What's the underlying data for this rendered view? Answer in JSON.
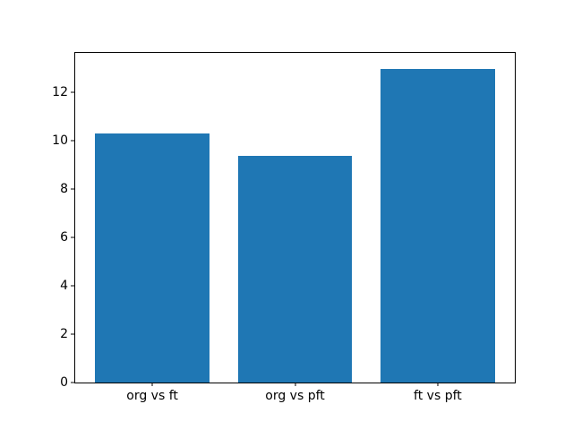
{
  "chart_data": {
    "type": "bar",
    "categories": [
      "org vs ft",
      "org vs pft",
      "ft vs pft"
    ],
    "values": [
      10.3,
      9.4,
      13.0
    ],
    "title": "",
    "xlabel": "",
    "ylabel": "",
    "yticks": [
      0,
      2,
      4,
      6,
      8,
      10,
      12
    ],
    "ylim": [
      0,
      13.65
    ],
    "xlim": [
      -0.54,
      2.54
    ],
    "bar_width": 0.8,
    "bar_color": "#1f77b4",
    "background": "#ffffff",
    "grid": false,
    "legend": false
  }
}
